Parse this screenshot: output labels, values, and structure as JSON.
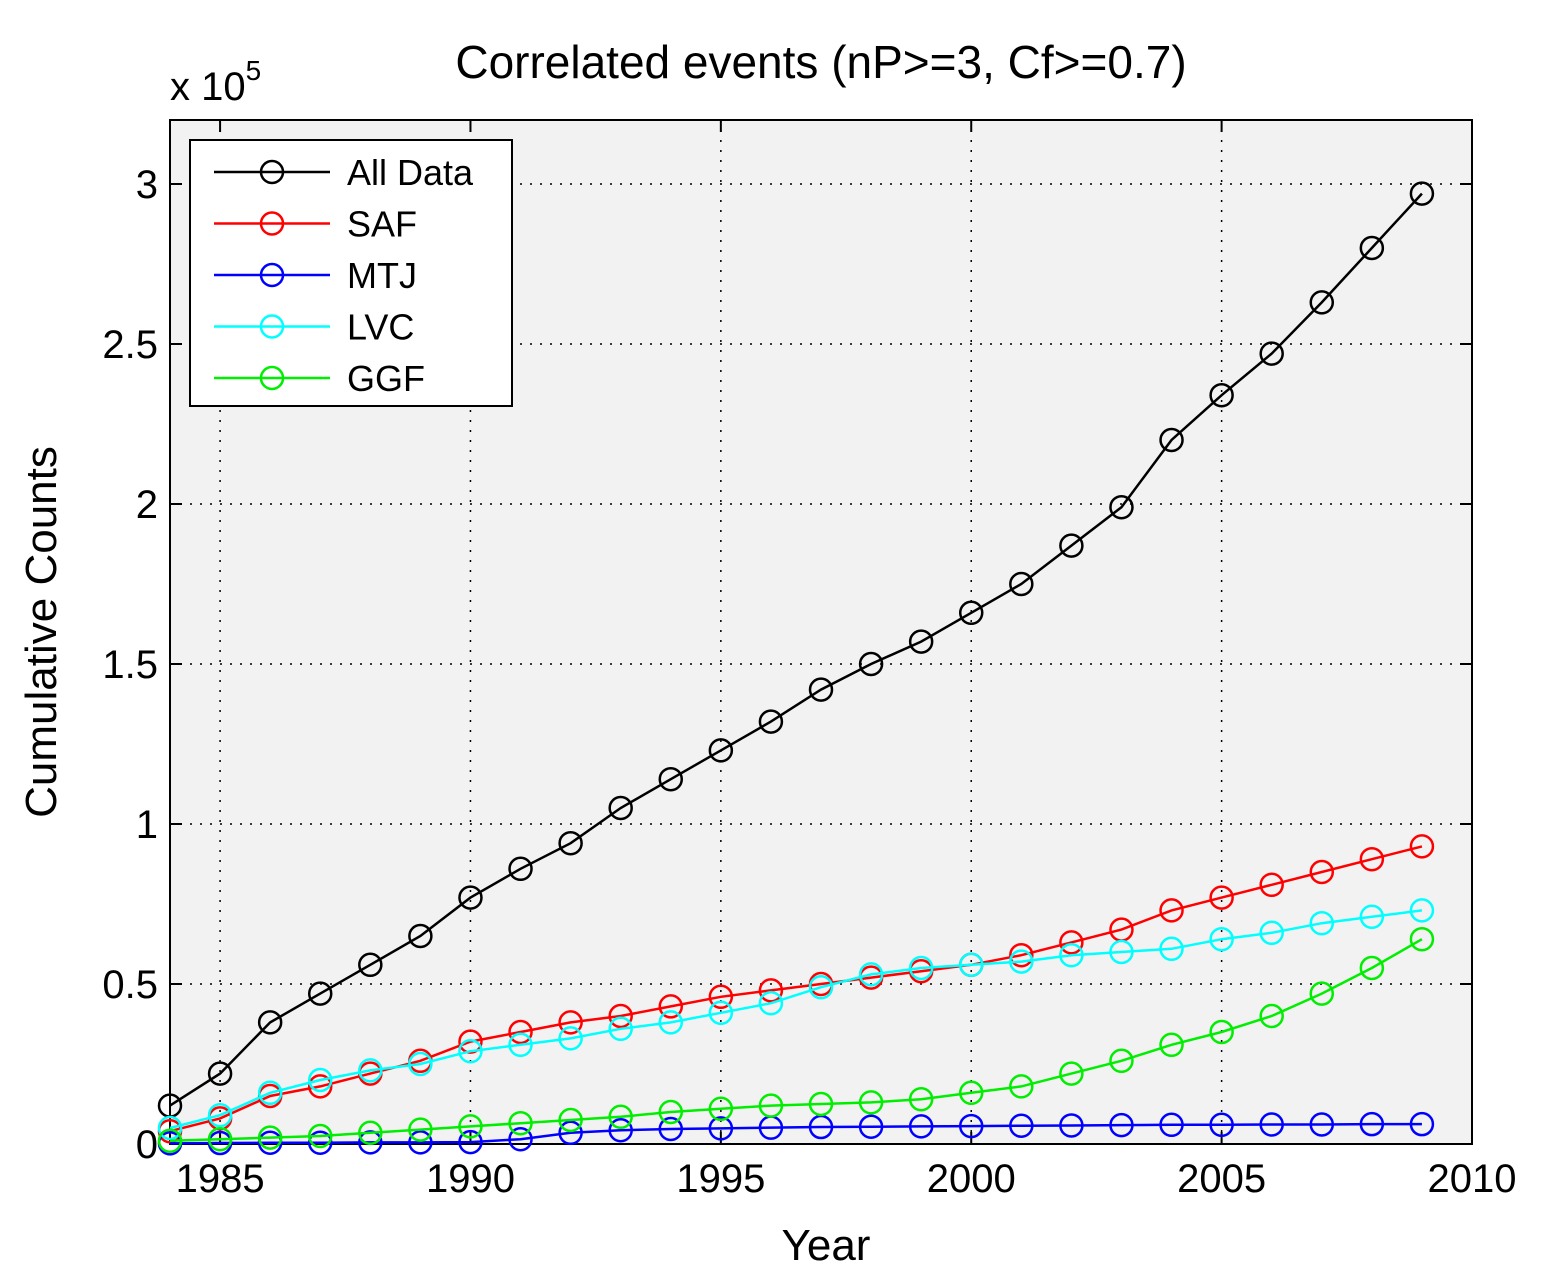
{
  "chart_data": {
    "type": "line",
    "title": "Correlated events (nP>=3, Cf>=0.7)",
    "xlabel": "Year",
    "ylabel": "Cumulative Counts",
    "y_multiplier_text": "x 10",
    "y_multiplier_exponent": "5",
    "xlim": [
      1984,
      2010
    ],
    "ylim": [
      0,
      3.2
    ],
    "x_ticks": [
      1985,
      1990,
      1995,
      2000,
      2005,
      2010
    ],
    "x_tick_labels": [
      "1985",
      "1990",
      "1995",
      "2000",
      "2005",
      "2010"
    ],
    "y_ticks": [
      0,
      0.5,
      1,
      1.5,
      2,
      2.5,
      3
    ],
    "y_tick_labels": [
      "0",
      "0.5",
      "1",
      "1.5",
      "2",
      "2.5",
      "3"
    ],
    "grid": true,
    "legend_position": "top-left",
    "marker": "circle",
    "x": [
      1984,
      1985,
      1986,
      1987,
      1988,
      1989,
      1990,
      1991,
      1992,
      1993,
      1994,
      1995,
      1996,
      1997,
      1998,
      1999,
      2000,
      2001,
      2002,
      2003,
      2004,
      2005,
      2006,
      2007,
      2008,
      2009
    ],
    "series": [
      {
        "name": "All Data",
        "color": "#000000",
        "values": [
          0.12,
          0.22,
          0.38,
          0.47,
          0.56,
          0.65,
          0.77,
          0.86,
          0.94,
          1.05,
          1.14,
          1.23,
          1.32,
          1.42,
          1.5,
          1.57,
          1.66,
          1.75,
          1.87,
          1.99,
          2.2,
          2.34,
          2.47,
          2.63,
          2.8,
          2.97
        ]
      },
      {
        "name": "SAF",
        "color": "#ff0000",
        "values": [
          0.04,
          0.08,
          0.15,
          0.18,
          0.22,
          0.26,
          0.32,
          0.35,
          0.38,
          0.4,
          0.43,
          0.46,
          0.48,
          0.5,
          0.52,
          0.54,
          0.56,
          0.59,
          0.63,
          0.67,
          0.73,
          0.77,
          0.81,
          0.85,
          0.89,
          0.93
        ]
      },
      {
        "name": "MTJ",
        "color": "#0000ff",
        "values": [
          0.002,
          0.003,
          0.004,
          0.004,
          0.005,
          0.005,
          0.006,
          0.015,
          0.035,
          0.043,
          0.047,
          0.049,
          0.051,
          0.053,
          0.054,
          0.055,
          0.056,
          0.057,
          0.058,
          0.059,
          0.06,
          0.06,
          0.061,
          0.061,
          0.062,
          0.062
        ]
      },
      {
        "name": "LVC",
        "color": "#00ffff",
        "values": [
          0.05,
          0.09,
          0.16,
          0.2,
          0.23,
          0.25,
          0.29,
          0.31,
          0.33,
          0.36,
          0.38,
          0.41,
          0.44,
          0.49,
          0.53,
          0.55,
          0.56,
          0.57,
          0.59,
          0.6,
          0.61,
          0.64,
          0.66,
          0.69,
          0.71,
          0.73
        ]
      },
      {
        "name": "GGF",
        "color": "#00ee00",
        "values": [
          0.01,
          0.015,
          0.02,
          0.025,
          0.035,
          0.045,
          0.055,
          0.065,
          0.075,
          0.085,
          0.1,
          0.11,
          0.12,
          0.125,
          0.13,
          0.14,
          0.16,
          0.18,
          0.22,
          0.26,
          0.31,
          0.35,
          0.4,
          0.47,
          0.55,
          0.64
        ]
      }
    ]
  }
}
